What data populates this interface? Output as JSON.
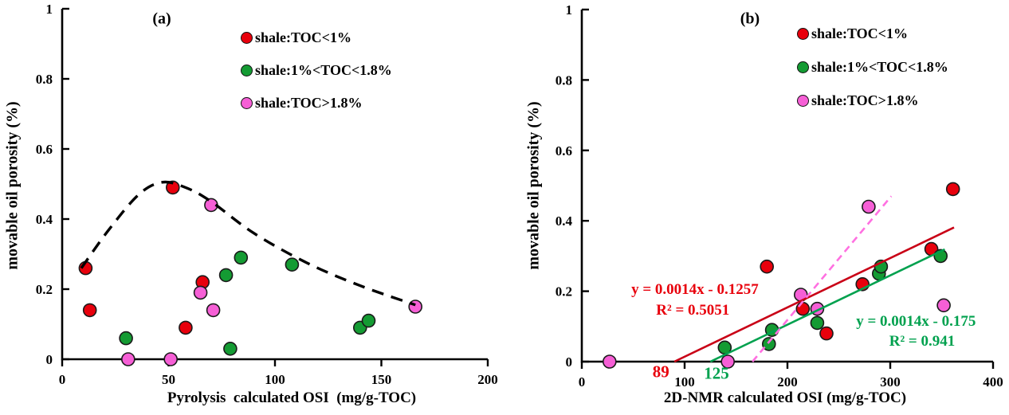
{
  "chart_data": [
    {
      "panel": "(a)",
      "type": "scatter",
      "xlabel": "Pyrolysis  calculated OSI  (mg/g-TOC)",
      "ylabel": "movable oil porosity (%)",
      "xlim": [
        0,
        200
      ],
      "ylim": [
        0,
        1
      ],
      "xticks": [
        "0",
        "50",
        "100",
        "150",
        "200"
      ],
      "yticks": [
        "0",
        "0.2",
        "0.4",
        "0.6",
        "0.8",
        "1"
      ],
      "grid": false,
      "legend_position": "upper-right-inside",
      "series": [
        {
          "name": "shale:TOC<1%",
          "color": "#e8000c",
          "points": [
            [
              11,
              0.26
            ],
            [
              13,
              0.14
            ],
            [
              52,
              0.49
            ],
            [
              58,
              0.09
            ],
            [
              66,
              0.22
            ]
          ]
        },
        {
          "name": "shale:1%<TOC<1.8%",
          "color": "#149b33",
          "points": [
            [
              30,
              0.06
            ],
            [
              77,
              0.24
            ],
            [
              79,
              0.03
            ],
            [
              84,
              0.29
            ],
            [
              108,
              0.27
            ],
            [
              140,
              0.09
            ],
            [
              144,
              0.11
            ]
          ]
        },
        {
          "name": "shale:TOC>1.8%",
          "color": "#f65fd6",
          "points": [
            [
              31,
              0
            ],
            [
              51,
              0
            ],
            [
              65,
              0.19
            ],
            [
              70,
              0.44
            ],
            [
              71,
              0.14
            ],
            [
              166,
              0.15
            ]
          ]
        }
      ],
      "trend_curve": {
        "description": "dashed black trend curve",
        "color": "#000000",
        "dash": true,
        "points": [
          [
            9,
            0.26
          ],
          [
            22,
            0.37
          ],
          [
            36,
            0.47
          ],
          [
            47,
            0.505
          ],
          [
            58,
            0.49
          ],
          [
            70,
            0.45
          ],
          [
            90,
            0.36
          ],
          [
            115,
            0.275
          ],
          [
            140,
            0.21
          ],
          [
            166,
            0.155
          ]
        ]
      }
    },
    {
      "panel": "(b)",
      "type": "scatter",
      "xlabel": "2D-NMR calculated OSI (mg/g-TOC)",
      "ylabel": "movable oil porosity (%)",
      "xlim": [
        0,
        400
      ],
      "ylim": [
        0,
        1
      ],
      "xticks": [
        "0",
        "100",
        "200",
        "300",
        "400"
      ],
      "yticks": [
        "0",
        "0.2",
        "0.4",
        "0.6",
        "0.8",
        "1"
      ],
      "grid": false,
      "legend_position": "upper-right-inside",
      "series": [
        {
          "name": "shale:TOC<1%",
          "color": "#e8000c",
          "points": [
            [
              180,
              0.27
            ],
            [
              215,
              0.15
            ],
            [
              238,
              0.08
            ],
            [
              273,
              0.22
            ],
            [
              340,
              0.32
            ],
            [
              361,
              0.49
            ]
          ]
        },
        {
          "name": "shale:1%<TOC<1.8%",
          "color": "#149b33",
          "points": [
            [
              139,
              0.04
            ],
            [
              182,
              0.05
            ],
            [
              185,
              0.09
            ],
            [
              229,
              0.11
            ],
            [
              289,
              0.25
            ],
            [
              291,
              0.27
            ],
            [
              349,
              0.3
            ]
          ]
        },
        {
          "name": "shale:TOC>1.8%",
          "color": "#f65fd6",
          "points": [
            [
              27,
              0
            ],
            [
              142,
              0
            ],
            [
              213,
              0.19
            ],
            [
              229,
              0.15
            ],
            [
              279,
              0.44
            ],
            [
              352,
              0.16
            ]
          ]
        }
      ],
      "fit_lines": [
        {
          "name": "red-linear-fit",
          "color": "#c90016",
          "dash": false,
          "from": [
            90,
            0
          ],
          "to": [
            362,
            0.381
          ]
        },
        {
          "name": "green-linear-fit",
          "color": "#00a14e",
          "dash": false,
          "from": [
            125,
            0
          ],
          "to": [
            353,
            0.319
          ]
        },
        {
          "name": "pink-dashed-trend",
          "color": "#ff70e1",
          "dash": true,
          "from": [
            166,
            0
          ],
          "to": [
            301,
            0.47
          ]
        }
      ],
      "annotations": [
        {
          "text": "y = 0.0014x - 0.1257",
          "x": 110,
          "y": 0.207,
          "color": "#e8000c",
          "size": 19
        },
        {
          "text": "R² = 0.5051",
          "x": 108,
          "y": 0.148,
          "color": "#e8000c",
          "size": 19
        },
        {
          "text": "y = 0.0014x - 0.175",
          "x": 325,
          "y": 0.117,
          "color": "#00a14e",
          "size": 19
        },
        {
          "text": "R² = 0.941",
          "x": 331,
          "y": 0.06,
          "color": "#00a14e",
          "size": 19
        },
        {
          "text": "89",
          "x": 77,
          "y": -0.028,
          "color": "#e8000c",
          "size": 21
        },
        {
          "text": "125",
          "x": 131,
          "y": -0.032,
          "color": "#00a14e",
          "size": 21
        }
      ]
    }
  ]
}
